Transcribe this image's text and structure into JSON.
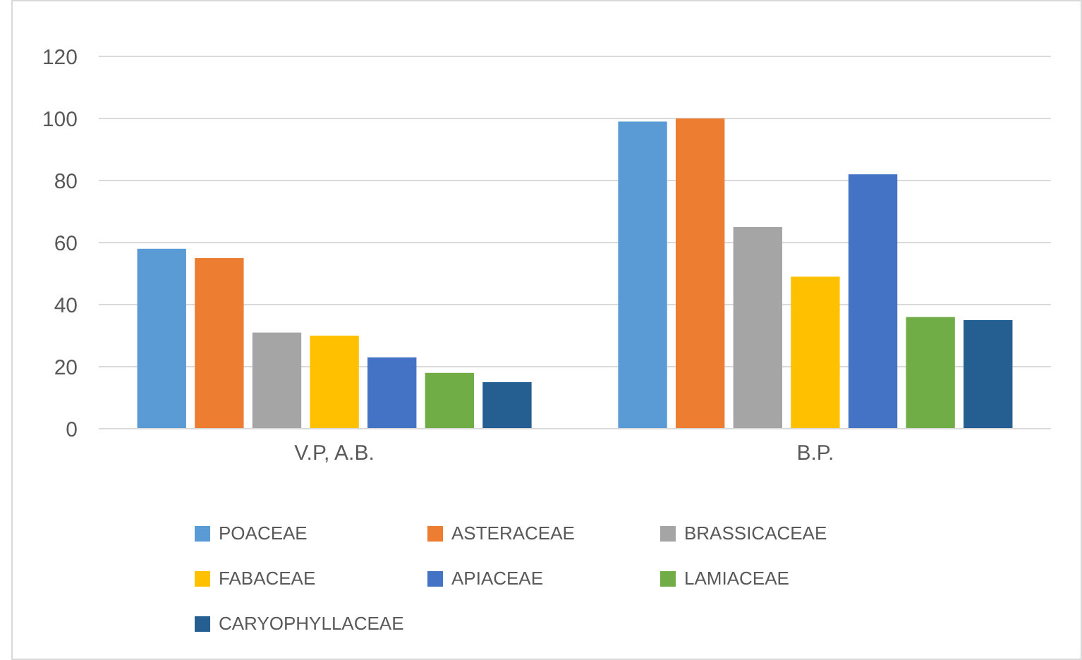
{
  "chart_data": {
    "type": "bar",
    "categories": [
      "V.P, A.B.",
      "B.P."
    ],
    "series": [
      {
        "name": "POACEAE",
        "color": "#5b9bd5",
        "values": [
          58,
          99
        ]
      },
      {
        "name": "ASTERACEAE",
        "color": "#ed7d31",
        "values": [
          55,
          100
        ]
      },
      {
        "name": "BRASSICACEAE",
        "color": "#a5a5a5",
        "values": [
          31,
          65
        ]
      },
      {
        "name": "FABACEAE",
        "color": "#ffc000",
        "values": [
          30,
          49
        ]
      },
      {
        "name": "APIACEAE",
        "color": "#4472c4",
        "values": [
          23,
          82
        ]
      },
      {
        "name": "LAMIACEAE",
        "color": "#70ad47",
        "values": [
          18,
          36
        ]
      },
      {
        "name": "CARYOPHYLLACEAE",
        "color": "#255e91",
        "values": [
          15,
          35
        ]
      }
    ],
    "ylim": [
      0,
      120
    ],
    "yticks": [
      0,
      20,
      40,
      60,
      80,
      100,
      120
    ],
    "grid": "y",
    "legend": "bottom"
  }
}
